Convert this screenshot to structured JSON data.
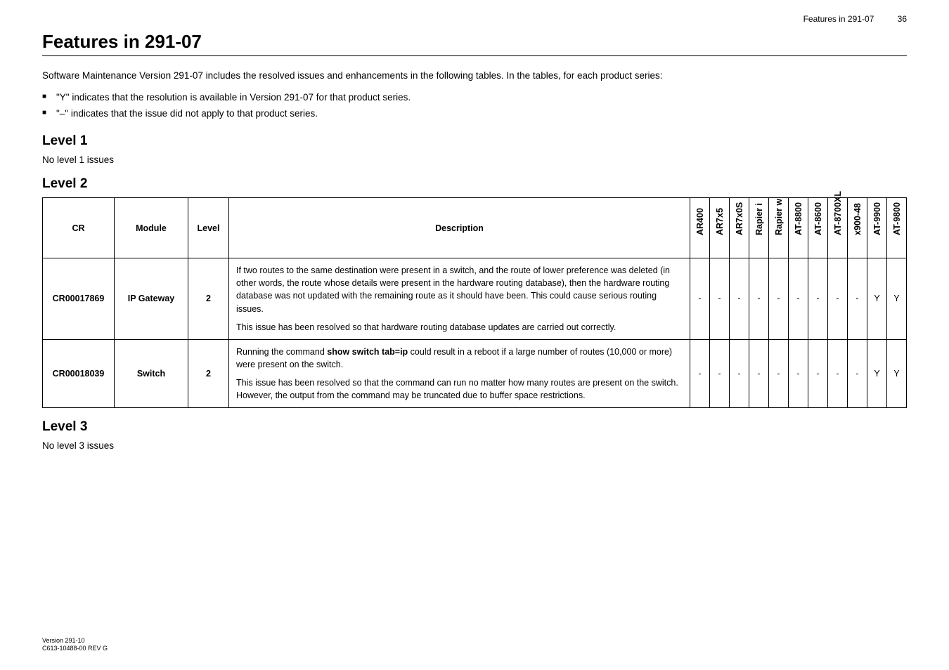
{
  "header": {
    "running_head": "Features in 291-07",
    "page_no": "36"
  },
  "title": "Features in 291-07",
  "intro": "Software Maintenance Version 291-07 includes the resolved issues and enhancements in the following tables. In the tables, for each product series:",
  "bullets": [
    "\"Y\" indicates that the resolution is available in Version 291-07 for that product series.",
    "\"–\" indicates that the issue did not apply to that product series."
  ],
  "sections": {
    "l1": {
      "heading": "Level 1",
      "text": "No level 1 issues"
    },
    "l2": {
      "heading": "Level 2"
    },
    "l3": {
      "heading": "Level 3",
      "text": "No level 3 issues"
    }
  },
  "table": {
    "columns": {
      "cr": "CR",
      "module": "Module",
      "level": "Level",
      "description": "Description"
    },
    "products": [
      "AR400",
      "AR7x5",
      "AR7x0S",
      "Rapier i",
      "Rapier w",
      "AT-8800",
      "AT-8600",
      "AT-8700XL",
      "x900-48",
      "AT-9900",
      "AT-9800"
    ],
    "rows": [
      {
        "cr": "CR00017869",
        "module": "IP Gateway",
        "level": "2",
        "desc": [
          "If two routes to the same destination were present in a switch, and the route of lower preference was deleted (in other words, the route whose details were present in the hardware routing database), then the hardware routing database was not updated with the remaining route as it should have been. This could cause serious routing issues.",
          "This issue has been resolved so that hardware routing database updates are carried out correctly."
        ],
        "cells": [
          "-",
          "-",
          "-",
          "-",
          "-",
          "-",
          "-",
          "-",
          "-",
          "Y",
          "Y"
        ]
      },
      {
        "cr": "CR00018039",
        "module": "Switch",
        "level": "2",
        "desc": [
          "Running the command <span class=\"cmd\">show switch tab=ip</span> could result in a reboot if a large number of routes (10,000 or more) were present on the switch.",
          "This issue has been resolved so that the command can run no matter how many routes are present on the switch. However, the output from the command may be truncated due to buffer space restrictions."
        ],
        "cells": [
          "-",
          "-",
          "-",
          "-",
          "-",
          "-",
          "-",
          "-",
          "-",
          "Y",
          "Y"
        ]
      }
    ]
  },
  "footer": {
    "line1": "Version 291-10",
    "line2": "C613-10488-00 REV G"
  }
}
